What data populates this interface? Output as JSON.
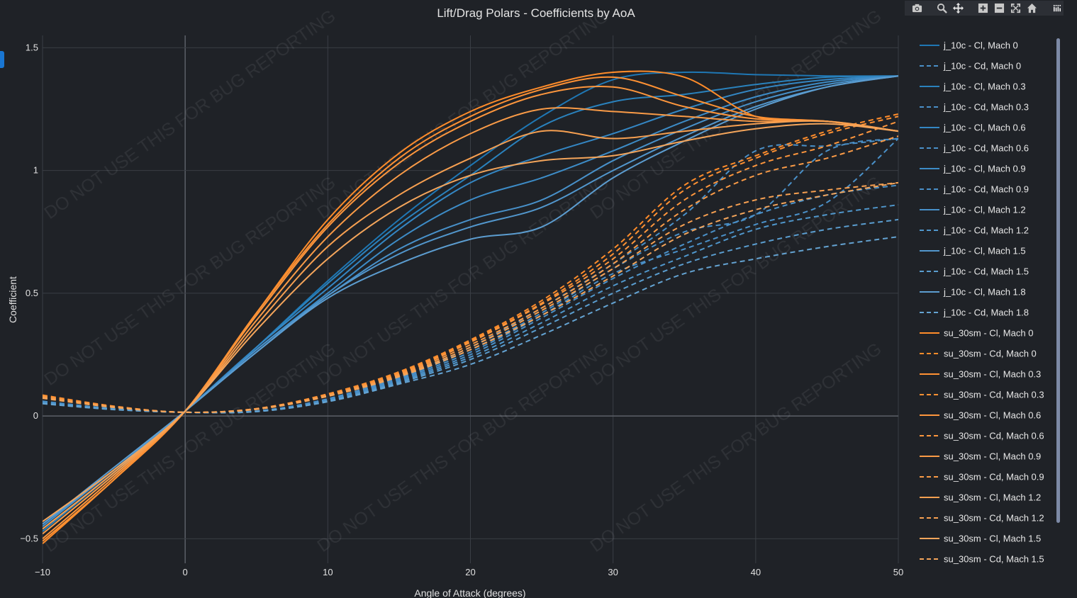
{
  "chart_data": {
    "type": "line",
    "title": "Lift/Drag Polars - Coefficients by AoA",
    "xlabel": "Angle of Attack (degrees)",
    "ylabel": "Coefficient",
    "xlim": [
      -10,
      50
    ],
    "ylim": [
      -0.6,
      1.55
    ],
    "xticks": [
      -10,
      0,
      10,
      20,
      30,
      40,
      50
    ],
    "xtick_labels": [
      "−10",
      "0",
      "10",
      "20",
      "30",
      "40",
      "50"
    ],
    "yticks": [
      -0.5,
      0,
      0.5,
      1,
      1.5
    ],
    "ytick_labels": [
      "−0.5",
      "0",
      "0.5",
      "1",
      "1.5"
    ],
    "grid": true,
    "legend_position": "right",
    "watermark": "DO NOT USE THIS FOR BUG REPORTING",
    "x": [
      -10,
      -5,
      0,
      5,
      10,
      15,
      20,
      25,
      30,
      35,
      40,
      45,
      50
    ],
    "series": [
      {
        "name": "j_10c - Cl, Mach 0",
        "color": "#1f77b4",
        "dash": "solid",
        "values": [
          -0.48,
          -0.24,
          0.02,
          0.28,
          0.55,
          0.8,
          1.02,
          1.22,
          1.37,
          1.4,
          1.39,
          1.385,
          1.385
        ]
      },
      {
        "name": "j_10c - Cd, Mach 0",
        "color": "#4a90c8",
        "dash": "dash",
        "values": [
          0.06,
          0.03,
          0.015,
          0.02,
          0.07,
          0.16,
          0.28,
          0.44,
          0.62,
          0.82,
          1.08,
          1.1,
          1.13
        ]
      },
      {
        "name": "j_10c - Cl, Mach 0.3",
        "color": "#2a82bd",
        "dash": "solid",
        "values": [
          -0.47,
          -0.23,
          0.02,
          0.28,
          0.54,
          0.78,
          0.98,
          1.18,
          1.28,
          1.31,
          1.35,
          1.38,
          1.385
        ]
      },
      {
        "name": "j_10c - Cd, Mach 0.3",
        "color": "#4a90c8",
        "dash": "dash",
        "values": [
          0.058,
          0.03,
          0.015,
          0.02,
          0.068,
          0.155,
          0.27,
          0.42,
          0.6,
          0.75,
          0.82,
          1.08,
          1.13
        ]
      },
      {
        "name": "j_10c - Cl, Mach 0.6",
        "color": "#3487c4",
        "dash": "solid",
        "values": [
          -0.46,
          -0.23,
          0.02,
          0.28,
          0.52,
          0.76,
          0.95,
          1.06,
          1.15,
          1.25,
          1.33,
          1.37,
          1.385
        ]
      },
      {
        "name": "j_10c - Cd, Mach 0.6",
        "color": "#4a90c8",
        "dash": "dash",
        "values": [
          0.056,
          0.029,
          0.015,
          0.02,
          0.066,
          0.15,
          0.26,
          0.41,
          0.58,
          0.68,
          0.78,
          0.87,
          1.13
        ]
      },
      {
        "name": "j_10c - Cl, Mach 0.9",
        "color": "#3d8cc7",
        "dash": "solid",
        "values": [
          -0.45,
          -0.22,
          0.02,
          0.27,
          0.5,
          0.72,
          0.88,
          0.97,
          1.08,
          1.2,
          1.3,
          1.36,
          1.385
        ]
      },
      {
        "name": "j_10c - Cd, Mach 0.9",
        "color": "#4a90c8",
        "dash": "dash",
        "values": [
          0.054,
          0.028,
          0.015,
          0.019,
          0.064,
          0.145,
          0.25,
          0.4,
          0.56,
          0.7,
          0.82,
          0.9,
          0.94
        ]
      },
      {
        "name": "j_10c - Cl, Mach 1.2",
        "color": "#4891ca",
        "dash": "solid",
        "values": [
          -0.45,
          -0.22,
          0.02,
          0.27,
          0.49,
          0.68,
          0.8,
          0.88,
          1.04,
          1.17,
          1.28,
          1.35,
          1.385
        ]
      },
      {
        "name": "j_10c - Cd, Mach 1.2",
        "color": "#5097cc",
        "dash": "dash",
        "values": [
          0.053,
          0.028,
          0.015,
          0.019,
          0.062,
          0.14,
          0.24,
          0.38,
          0.53,
          0.65,
          0.76,
          0.82,
          0.86
        ]
      },
      {
        "name": "j_10c - Cl, Mach 1.5",
        "color": "#5297cd",
        "dash": "solid",
        "values": [
          -0.44,
          -0.22,
          0.02,
          0.26,
          0.49,
          0.66,
          0.77,
          0.85,
          1.0,
          1.14,
          1.26,
          1.34,
          1.385
        ]
      },
      {
        "name": "j_10c - Cd, Mach 1.5",
        "color": "#5a9dcf",
        "dash": "dash",
        "values": [
          0.052,
          0.027,
          0.015,
          0.018,
          0.06,
          0.135,
          0.23,
          0.36,
          0.5,
          0.62,
          0.7,
          0.76,
          0.8
        ]
      },
      {
        "name": "j_10c - Cl, Mach 1.8",
        "color": "#5c9dd0",
        "dash": "solid",
        "values": [
          -0.44,
          -0.21,
          0.02,
          0.26,
          0.48,
          0.62,
          0.72,
          0.77,
          0.97,
          1.12,
          1.25,
          1.34,
          1.385
        ]
      },
      {
        "name": "j_10c - Cd, Mach 1.8",
        "color": "#64a3d2",
        "dash": "dash",
        "values": [
          0.05,
          0.026,
          0.015,
          0.018,
          0.058,
          0.13,
          0.21,
          0.33,
          0.46,
          0.58,
          0.64,
          0.69,
          0.73
        ]
      },
      {
        "name": "su_30sm - Cl, Mach 0",
        "color": "#ff8c2a",
        "dash": "solid",
        "values": [
          -0.52,
          -0.26,
          0.02,
          0.42,
          0.8,
          1.07,
          1.24,
          1.34,
          1.4,
          1.38,
          1.22,
          1.2,
          1.16
        ]
      },
      {
        "name": "su_30sm - Cd, Mach 0",
        "color": "#ff8c2a",
        "dash": "dash",
        "values": [
          0.085,
          0.04,
          0.015,
          0.03,
          0.09,
          0.18,
          0.31,
          0.47,
          0.68,
          0.94,
          1.06,
          1.16,
          1.23
        ]
      },
      {
        "name": "su_30sm - Cl, Mach 0.3",
        "color": "#ff9133",
        "dash": "solid",
        "values": [
          -0.51,
          -0.26,
          0.02,
          0.42,
          0.78,
          1.05,
          1.22,
          1.33,
          1.38,
          1.3,
          1.22,
          1.2,
          1.16
        ]
      },
      {
        "name": "su_30sm - Cd, Mach 0.3",
        "color": "#ff9133",
        "dash": "dash",
        "values": [
          0.083,
          0.039,
          0.015,
          0.03,
          0.088,
          0.176,
          0.305,
          0.46,
          0.66,
          0.92,
          1.05,
          1.15,
          1.22
        ]
      },
      {
        "name": "su_30sm - Cl, Mach 0.6",
        "color": "#fd963d",
        "dash": "solid",
        "values": [
          -0.5,
          -0.25,
          0.02,
          0.41,
          0.77,
          1.03,
          1.2,
          1.31,
          1.34,
          1.26,
          1.21,
          1.2,
          1.16
        ]
      },
      {
        "name": "su_30sm - Cd, Mach 0.6",
        "color": "#fd963d",
        "dash": "dash",
        "values": [
          0.08,
          0.038,
          0.015,
          0.029,
          0.086,
          0.172,
          0.3,
          0.455,
          0.64,
          0.88,
          1.02,
          1.1,
          1.2
        ]
      },
      {
        "name": "su_30sm - Cl, Mach 0.9",
        "color": "#fa9b47",
        "dash": "solid",
        "values": [
          -0.48,
          -0.24,
          0.02,
          0.39,
          0.73,
          0.98,
          1.15,
          1.25,
          1.24,
          1.22,
          1.2,
          1.2,
          1.16
        ]
      },
      {
        "name": "su_30sm - Cd, Mach 0.9",
        "color": "#fa9b47",
        "dash": "dash",
        "values": [
          0.078,
          0.037,
          0.015,
          0.029,
          0.084,
          0.168,
          0.29,
          0.44,
          0.62,
          0.84,
          0.98,
          1.05,
          1.14
        ]
      },
      {
        "name": "su_30sm - Cl, Mach 1.2",
        "color": "#f7a051",
        "dash": "solid",
        "values": [
          -0.46,
          -0.23,
          0.02,
          0.37,
          0.69,
          0.9,
          1.05,
          1.16,
          1.13,
          1.16,
          1.19,
          1.2,
          1.16
        ]
      },
      {
        "name": "su_30sm - Cd, Mach 1.2",
        "color": "#f7a051",
        "dash": "dash",
        "values": [
          0.075,
          0.036,
          0.015,
          0.028,
          0.082,
          0.164,
          0.28,
          0.43,
          0.6,
          0.78,
          0.88,
          0.92,
          0.95
        ]
      },
      {
        "name": "su_30sm - Cl, Mach 1.5",
        "color": "#f4a55b",
        "dash": "solid",
        "values": [
          -0.43,
          -0.22,
          0.02,
          0.35,
          0.64,
          0.85,
          0.98,
          1.04,
          1.06,
          1.12,
          1.17,
          1.19,
          1.16
        ]
      },
      {
        "name": "su_30sm - Cd, Mach 1.5",
        "color": "#f4a55b",
        "dash": "dash",
        "values": [
          0.072,
          0.035,
          0.015,
          0.027,
          0.08,
          0.16,
          0.27,
          0.41,
          0.57,
          0.74,
          0.84,
          0.9,
          0.95
        ]
      }
    ]
  },
  "modebar": {
    "buttons": [
      "camera-icon",
      "zoom-icon",
      "pan-icon",
      "zoom-in-icon",
      "zoom-out-icon",
      "autoscale-icon",
      "reset-axes-icon",
      "plotly-logo-icon"
    ]
  }
}
